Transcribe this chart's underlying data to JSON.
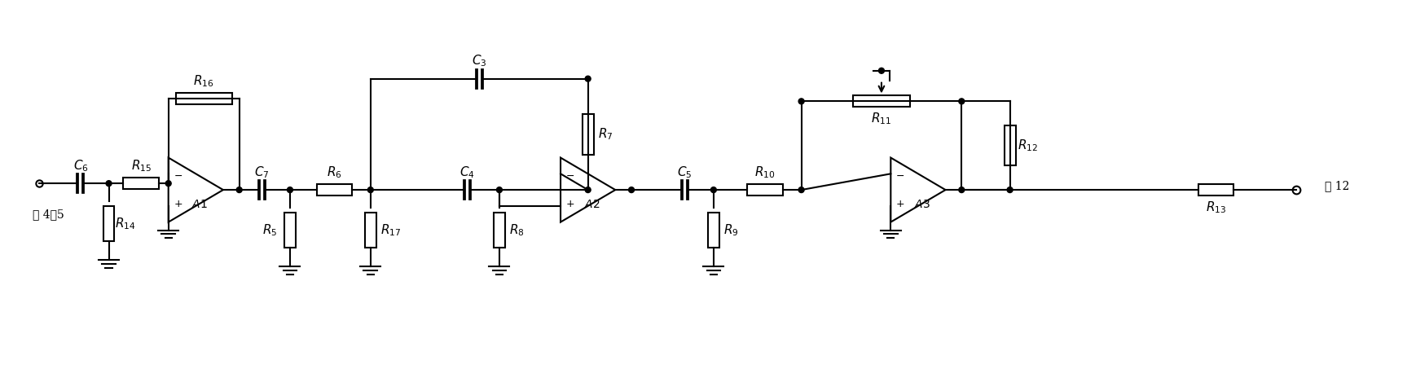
{
  "bg_color": "#ffffff",
  "line_color": "#000000",
  "lw": 1.5,
  "fig_width": 17.27,
  "fig_height": 4.8,
  "dpi": 100,
  "xlim": [
    0,
    1727
  ],
  "ylim": [
    0,
    480
  ]
}
